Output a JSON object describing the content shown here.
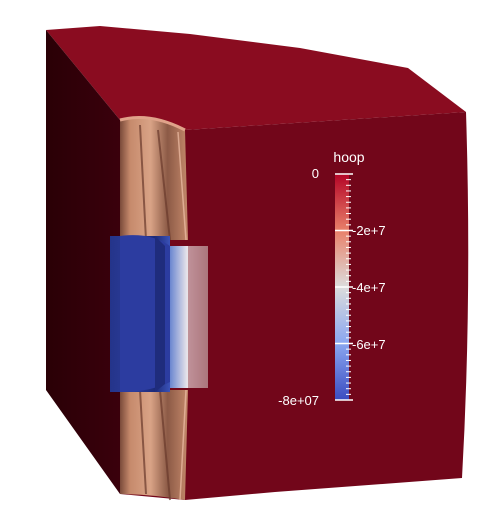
{
  "scene": {
    "object": "cube-with-cylindrical-cutout",
    "colors": {
      "top_face": "#8a0c20",
      "left_face": "#2e0008",
      "front_face": "#72061a",
      "inner_light": "#c68a6c",
      "inner_blue": "#2c3c96",
      "inner_white": "#e8e4e8"
    }
  },
  "colorbar": {
    "title": "hoop",
    "ticks": [
      "0",
      "-2e+7",
      "-4e+7",
      "-6e+7",
      "-8e+07"
    ],
    "range": [
      -80000000,
      0
    ],
    "colormap": "cool-to-warm",
    "colors": {
      "high": "#b40426",
      "mid": "#dddddd",
      "low": "#3b4cc0"
    }
  }
}
